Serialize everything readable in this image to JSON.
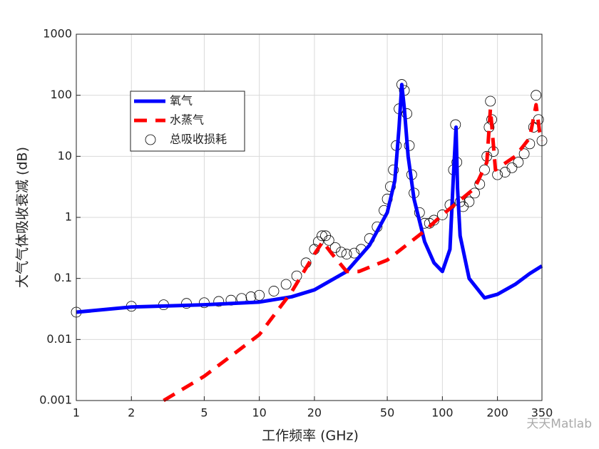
{
  "chart_data": {
    "type": "line",
    "xlabel": "工作频率 (GHz)",
    "ylabel": "大气气体吸收衰减 (dB)",
    "xscale": "log",
    "yscale": "log",
    "grid": true,
    "legend": "upper left",
    "xlim": [
      1,
      350
    ],
    "xticks": [
      1,
      2,
      5,
      10,
      20,
      50,
      100,
      200,
      350
    ],
    "ylim": [
      0.001,
      1000
    ],
    "yticks": [
      0.001,
      0.01,
      0.1,
      1,
      10,
      100,
      1000
    ],
    "watermark": "天天Matlab",
    "series": [
      {
        "name": "氧气",
        "color": "#0000ff",
        "style": "solid",
        "x": [
          1,
          2,
          5,
          10,
          15,
          20,
          30,
          40,
          50,
          55,
          58,
          60,
          62,
          65,
          70,
          80,
          90,
          100,
          110,
          115,
          118.75,
          121,
          125,
          140,
          170,
          200,
          250,
          300,
          350
        ],
        "values": [
          0.028,
          0.034,
          0.037,
          0.041,
          0.05,
          0.065,
          0.13,
          0.35,
          1.2,
          4,
          30,
          150,
          60,
          10,
          2,
          0.4,
          0.18,
          0.13,
          0.3,
          5,
          30,
          3,
          0.5,
          0.1,
          0.048,
          0.055,
          0.08,
          0.12,
          0.16
        ]
      },
      {
        "name": "水蒸气",
        "color": "#ff0000",
        "style": "dashed",
        "x": [
          3,
          5,
          10,
          15,
          20,
          22.2,
          25,
          30,
          35,
          50,
          80,
          100,
          150,
          175,
          183,
          195,
          250,
          300,
          325,
          340,
          350
        ],
        "values": [
          0.001,
          0.0025,
          0.012,
          0.06,
          0.25,
          0.4,
          0.25,
          0.13,
          0.13,
          0.2,
          0.6,
          1.1,
          3,
          8,
          60,
          6,
          10,
          20,
          70,
          25,
          18
        ]
      },
      {
        "name": "总吸收损耗",
        "color": "#000000",
        "style": "markers",
        "x": [
          1,
          2,
          3,
          4,
          5,
          6,
          7,
          8,
          9,
          10,
          12,
          14,
          16,
          18,
          20,
          21,
          22,
          23,
          24,
          26,
          28,
          30,
          33,
          36,
          40,
          44,
          48,
          50,
          52,
          54,
          56,
          58,
          60,
          62,
          64,
          66,
          68,
          70,
          75,
          80,
          85,
          90,
          100,
          110,
          115,
          118,
          120,
          125,
          130,
          140,
          150,
          160,
          170,
          175,
          180,
          183,
          186,
          190,
          200,
          220,
          240,
          260,
          280,
          300,
          315,
          325,
          335,
          350
        ],
        "values": [
          0.028,
          0.035,
          0.037,
          0.039,
          0.04,
          0.042,
          0.044,
          0.047,
          0.05,
          0.053,
          0.062,
          0.08,
          0.11,
          0.18,
          0.3,
          0.4,
          0.5,
          0.5,
          0.42,
          0.32,
          0.27,
          0.25,
          0.26,
          0.3,
          0.45,
          0.7,
          1.3,
          2,
          3.2,
          6,
          15,
          60,
          150,
          120,
          50,
          15,
          5,
          2.5,
          1.2,
          0.8,
          0.8,
          0.9,
          1.1,
          1.6,
          6,
          33,
          8,
          1.8,
          1.5,
          1.8,
          2.5,
          3.5,
          6,
          10,
          30,
          80,
          40,
          12,
          5,
          5.5,
          6.5,
          8,
          11,
          16,
          30,
          100,
          40,
          18
        ]
      }
    ]
  }
}
